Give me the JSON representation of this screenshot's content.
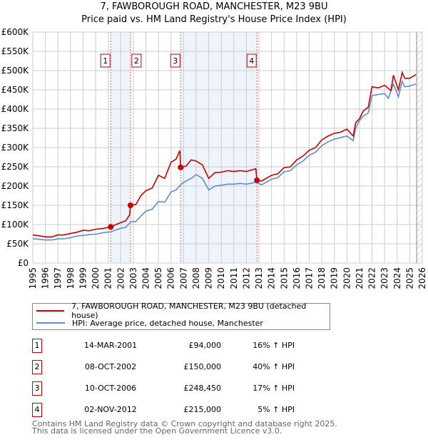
{
  "header": {
    "title": "7, FAWBOROUGH ROAD, MANCHESTER, M23 9BU",
    "subtitle": "Price paid vs. HM Land Registry's House Price Index (HPI)"
  },
  "chart_data": {
    "type": "line",
    "ylim": [
      0,
      600000
    ],
    "xlim": [
      1995,
      2026
    ],
    "yticks": [
      {
        "v": 0,
        "label": "£0"
      },
      {
        "v": 50000,
        "label": "£50K"
      },
      {
        "v": 100000,
        "label": "£100K"
      },
      {
        "v": 150000,
        "label": "£150K"
      },
      {
        "v": 200000,
        "label": "£200K"
      },
      {
        "v": 250000,
        "label": "£250K"
      },
      {
        "v": 300000,
        "label": "£300K"
      },
      {
        "v": 350000,
        "label": "£350K"
      },
      {
        "v": 400000,
        "label": "£400K"
      },
      {
        "v": 450000,
        "label": "£450K"
      },
      {
        "v": 500000,
        "label": "£500K"
      },
      {
        "v": 550000,
        "label": "£550K"
      },
      {
        "v": 600000,
        "label": "£600K"
      }
    ],
    "xticks": [
      "1995",
      "1996",
      "1997",
      "1998",
      "1999",
      "2000",
      "2001",
      "2002",
      "2003",
      "2004",
      "2005",
      "2006",
      "2007",
      "2008",
      "2009",
      "2010",
      "2011",
      "2012",
      "2013",
      "2014",
      "2015",
      "2016",
      "2017",
      "2018",
      "2019",
      "2020",
      "2021",
      "2022",
      "2023",
      "2024",
      "2025",
      "2026"
    ],
    "shaded_ranges": [
      [
        2001.2,
        2002.77
      ],
      [
        2006.77,
        2012.84
      ]
    ],
    "forecast_from": 2025.55,
    "series": [
      {
        "name": "7, FAWBOROUGH ROAD, MANCHESTER, M23 9BU (detached house)",
        "color": "#cc0000",
        "points": [
          [
            1995,
            73000
          ],
          [
            1995.5,
            71000
          ],
          [
            1996,
            68000
          ],
          [
            1996.5,
            68000
          ],
          [
            1997,
            73000
          ],
          [
            1997.5,
            73000
          ],
          [
            1998,
            77000
          ],
          [
            1998.5,
            80000
          ],
          [
            1999,
            85000
          ],
          [
            1999.5,
            84000
          ],
          [
            2000,
            88000
          ],
          [
            2000.6,
            90000
          ],
          [
            2001.2,
            94000
          ],
          [
            2001.6,
            100000
          ],
          [
            2002,
            105000
          ],
          [
            2002.4,
            110000
          ],
          [
            2002.7,
            125000
          ],
          [
            2002.77,
            150000
          ],
          [
            2003.2,
            152000
          ],
          [
            2003.6,
            175000
          ],
          [
            2004,
            188000
          ],
          [
            2004.5,
            195000
          ],
          [
            2005,
            228000
          ],
          [
            2005.5,
            220000
          ],
          [
            2006,
            262000
          ],
          [
            2006.4,
            270000
          ],
          [
            2006.7,
            292000
          ],
          [
            2006.77,
            248450
          ],
          [
            2007.2,
            252000
          ],
          [
            2007.6,
            268000
          ],
          [
            2008,
            265000
          ],
          [
            2008.5,
            255000
          ],
          [
            2009,
            220000
          ],
          [
            2009.5,
            235000
          ],
          [
            2010,
            236000
          ],
          [
            2010.5,
            240000
          ],
          [
            2011,
            238000
          ],
          [
            2011.5,
            240000
          ],
          [
            2012,
            238000
          ],
          [
            2012.75,
            245000
          ],
          [
            2012.84,
            215000
          ],
          [
            2013.2,
            213000
          ],
          [
            2014,
            228000
          ],
          [
            2014.5,
            232000
          ],
          [
            2015,
            248000
          ],
          [
            2015.5,
            250000
          ],
          [
            2016,
            268000
          ],
          [
            2016.5,
            278000
          ],
          [
            2017,
            293000
          ],
          [
            2017.5,
            300000
          ],
          [
            2018,
            320000
          ],
          [
            2018.5,
            330000
          ],
          [
            2019,
            337000
          ],
          [
            2019.5,
            340000
          ],
          [
            2020,
            348000
          ],
          [
            2020.5,
            330000
          ],
          [
            2020.7,
            365000
          ],
          [
            2021,
            375000
          ],
          [
            2021.3,
            395000
          ],
          [
            2021.7,
            405000
          ],
          [
            2022,
            458000
          ],
          [
            2022.5,
            455000
          ],
          [
            2023,
            462000
          ],
          [
            2023.5,
            448000
          ],
          [
            2023.7,
            488000
          ],
          [
            2024.1,
            450000
          ],
          [
            2024.4,
            495000
          ],
          [
            2024.6,
            480000
          ],
          [
            2025,
            480000
          ],
          [
            2025.5,
            490000
          ]
        ]
      },
      {
        "name": "HPI: Average price, detached house, Manchester",
        "color": "#5b8ed6",
        "points": [
          [
            1995,
            63000
          ],
          [
            1995.5,
            62000
          ],
          [
            1996,
            60000
          ],
          [
            1996.5,
            60000
          ],
          [
            1997,
            63000
          ],
          [
            1997.5,
            63000
          ],
          [
            1998,
            66000
          ],
          [
            1998.5,
            70000
          ],
          [
            1999,
            72000
          ],
          [
            1999.5,
            74000
          ],
          [
            2000,
            75000
          ],
          [
            2000.6,
            79000
          ],
          [
            2001.2,
            81000
          ],
          [
            2001.6,
            86000
          ],
          [
            2002,
            90000
          ],
          [
            2002.4,
            93000
          ],
          [
            2002.8,
            107000
          ],
          [
            2003.2,
            108000
          ],
          [
            2003.6,
            122000
          ],
          [
            2004,
            135000
          ],
          [
            2004.5,
            140000
          ],
          [
            2005,
            160000
          ],
          [
            2005.5,
            158000
          ],
          [
            2006,
            185000
          ],
          [
            2006.4,
            190000
          ],
          [
            2006.8,
            205000
          ],
          [
            2007.2,
            213000
          ],
          [
            2007.6,
            220000
          ],
          [
            2008,
            230000
          ],
          [
            2008.5,
            220000
          ],
          [
            2009,
            190000
          ],
          [
            2009.5,
            200000
          ],
          [
            2010,
            202000
          ],
          [
            2010.5,
            205000
          ],
          [
            2011,
            205000
          ],
          [
            2011.5,
            207000
          ],
          [
            2012,
            205000
          ],
          [
            2012.8,
            210000
          ],
          [
            2013.2,
            203000
          ],
          [
            2014,
            218000
          ],
          [
            2014.5,
            222000
          ],
          [
            2015,
            237000
          ],
          [
            2015.5,
            240000
          ],
          [
            2016,
            255000
          ],
          [
            2016.5,
            265000
          ],
          [
            2017,
            280000
          ],
          [
            2017.5,
            288000
          ],
          [
            2018,
            305000
          ],
          [
            2018.5,
            315000
          ],
          [
            2019,
            322000
          ],
          [
            2019.5,
            326000
          ],
          [
            2020,
            330000
          ],
          [
            2020.5,
            318000
          ],
          [
            2020.7,
            350000
          ],
          [
            2021,
            370000
          ],
          [
            2021.3,
            382000
          ],
          [
            2021.7,
            390000
          ],
          [
            2022,
            435000
          ],
          [
            2022.5,
            438000
          ],
          [
            2023,
            440000
          ],
          [
            2023.3,
            428000
          ],
          [
            2023.7,
            465000
          ],
          [
            2024.1,
            432000
          ],
          [
            2024.4,
            472000
          ],
          [
            2024.6,
            458000
          ],
          [
            2025,
            460000
          ],
          [
            2025.5,
            465000
          ]
        ]
      }
    ],
    "sales": [
      {
        "n": "1",
        "x": 2001.2,
        "y": 94000,
        "date": "14-MAR-2001",
        "price": "£94,000",
        "hpi": "16% ↑ HPI"
      },
      {
        "n": "2",
        "x": 2002.77,
        "y": 150000,
        "date": "08-OCT-2002",
        "price": "£150,000",
        "hpi": "40% ↑ HPI"
      },
      {
        "n": "3",
        "x": 2006.77,
        "y": 248450,
        "date": "10-OCT-2006",
        "price": "£248,450",
        "hpi": "17% ↑ HPI"
      },
      {
        "n": "4",
        "x": 2012.84,
        "y": 215000,
        "date": "02-NOV-2012",
        "price": "£215,000",
        "hpi": "5% ↑ HPI"
      }
    ]
  },
  "legend": {
    "property": "7, FAWBOROUGH ROAD, MANCHESTER, M23 9BU (detached house)",
    "hpi": "HPI: Average price, detached house, Manchester"
  },
  "footer": {
    "line1": "Contains HM Land Registry data © Crown copyright and database right 2025.",
    "line2": "This data is licensed under the Open Government Licence v3.0."
  }
}
